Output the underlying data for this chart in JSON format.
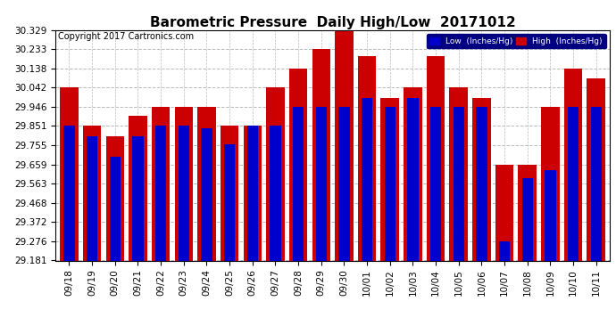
{
  "title": "Barometric Pressure  Daily High/Low  20171012",
  "copyright": "Copyright 2017 Cartronics.com",
  "legend_low": "Low  (Inches/Hg)",
  "legend_high": "High  (Inches/Hg)",
  "categories": [
    "09/18",
    "09/19",
    "09/20",
    "09/21",
    "09/22",
    "09/23",
    "09/24",
    "09/25",
    "09/26",
    "09/27",
    "09/28",
    "09/29",
    "09/30",
    "10/01",
    "10/02",
    "10/03",
    "10/04",
    "10/05",
    "10/06",
    "10/07",
    "10/08",
    "10/09",
    "10/10",
    "10/11"
  ],
  "low_values": [
    29.851,
    29.8,
    29.698,
    29.8,
    29.851,
    29.851,
    29.84,
    29.76,
    29.851,
    29.851,
    29.946,
    29.946,
    29.946,
    29.99,
    29.946,
    29.99,
    29.946,
    29.946,
    29.946,
    29.276,
    29.59,
    29.63,
    29.946,
    29.946
  ],
  "high_values": [
    30.042,
    29.851,
    29.8,
    29.9,
    29.946,
    29.946,
    29.946,
    29.851,
    29.851,
    30.042,
    30.138,
    30.233,
    30.329,
    30.2,
    29.99,
    30.042,
    30.2,
    30.042,
    29.99,
    29.659,
    29.659,
    29.946,
    30.138,
    30.09
  ],
  "ylim_min": 29.181,
  "ylim_max": 30.329,
  "yticks": [
    29.181,
    29.276,
    29.372,
    29.468,
    29.563,
    29.659,
    29.755,
    29.851,
    29.946,
    30.042,
    30.138,
    30.233,
    30.329
  ],
  "bar_width": 0.8,
  "low_color": "#0000cc",
  "high_color": "#cc0000",
  "bg_color": "#ffffff",
  "grid_color": "#bbbbbb",
  "title_fontsize": 11,
  "tick_fontsize": 7.5,
  "copyright_fontsize": 7
}
